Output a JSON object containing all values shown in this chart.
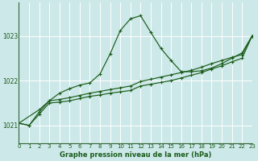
{
  "title": "Graphe pression niveau de la mer (hPa)",
  "bg_color": "#cce8e8",
  "line_color": "#1a5c1a",
  "axis_color": "#336633",
  "xmin": 0,
  "xmax": 23,
  "ymin": 1020.6,
  "ymax": 1023.75,
  "yticks": [
    1021,
    1022,
    1023
  ],
  "xticks": [
    0,
    1,
    2,
    3,
    4,
    5,
    6,
    7,
    8,
    9,
    10,
    11,
    12,
    13,
    14,
    15,
    16,
    17,
    18,
    19,
    20,
    21,
    22,
    23
  ],
  "series_main": {
    "x": [
      0,
      2,
      3,
      4,
      5,
      6,
      7,
      8,
      9,
      10,
      11,
      12,
      13,
      14,
      15,
      16,
      17,
      18,
      19,
      20,
      21,
      22,
      23
    ],
    "y": [
      1021.05,
      1021.35,
      1021.55,
      1021.72,
      1021.82,
      1021.9,
      1021.95,
      1022.15,
      1022.6,
      1023.12,
      1023.38,
      1023.45,
      1023.08,
      1022.72,
      1022.45,
      1022.2,
      1022.2,
      1022.22,
      1022.28,
      1022.38,
      1022.5,
      1022.62,
      1023.0
    ]
  },
  "series_ref1": {
    "x": [
      0,
      1,
      2,
      3,
      4,
      5,
      6,
      7,
      8,
      9,
      10,
      11,
      12,
      13,
      14,
      15,
      16,
      17,
      18,
      19,
      20,
      21,
      22,
      23
    ],
    "y": [
      1021.05,
      1021.0,
      1021.25,
      1021.5,
      1021.52,
      1021.55,
      1021.6,
      1021.65,
      1021.68,
      1021.72,
      1021.75,
      1021.78,
      1021.88,
      1021.92,
      1021.96,
      1022.0,
      1022.06,
      1022.12,
      1022.18,
      1022.26,
      1022.33,
      1022.42,
      1022.5,
      1023.0
    ]
  },
  "series_ref2": {
    "x": [
      0,
      1,
      2,
      3,
      4,
      5,
      6,
      7,
      8,
      9,
      10,
      11,
      12,
      13,
      14,
      15,
      16,
      17,
      18,
      19,
      20,
      21,
      22,
      23
    ],
    "y": [
      1021.05,
      1021.0,
      1021.3,
      1021.55,
      1021.58,
      1021.62,
      1021.67,
      1021.72,
      1021.76,
      1021.8,
      1021.84,
      1021.88,
      1021.98,
      1022.03,
      1022.08,
      1022.13,
      1022.18,
      1022.23,
      1022.3,
      1022.38,
      1022.45,
      1022.52,
      1022.58,
      1023.0
    ]
  }
}
